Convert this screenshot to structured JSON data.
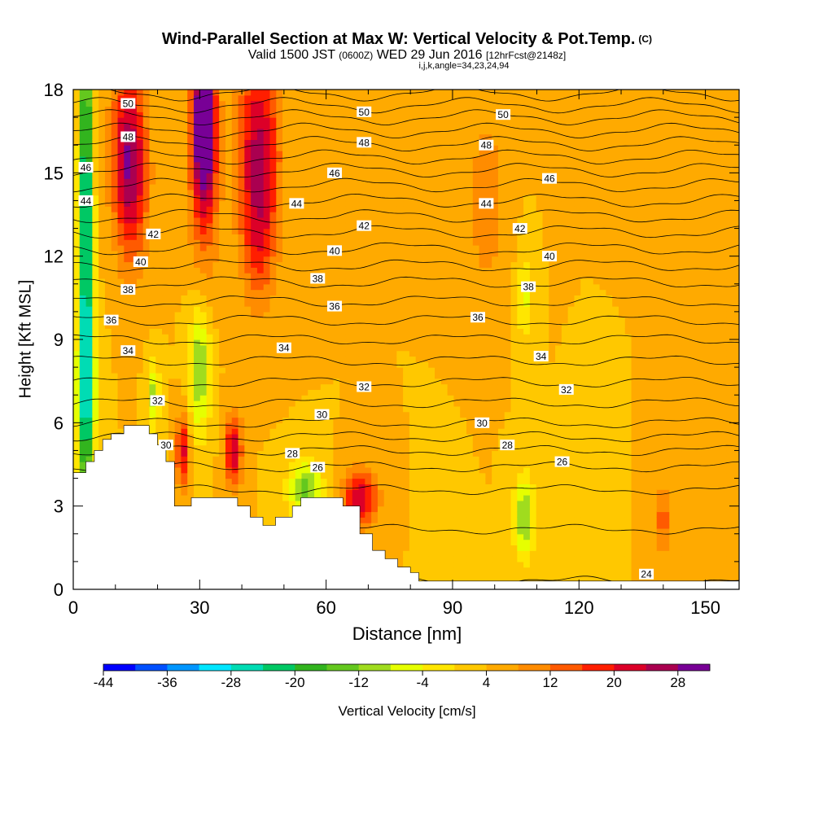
{
  "header": {
    "title": "Wind-Parallel Section at Max W: Vertical Velocity & Pot.Temp.",
    "title_suffix": "(C)",
    "valid_prefix": "Valid 1500 JST",
    "valid_zulu": "(0600Z)",
    "valid_date": "WED 29 Jun 2016",
    "forecast": "[12hrFcst@2148z]",
    "indices": "i,j,k,angle=34,23,24,94"
  },
  "chart_data": {
    "type": "heatmap",
    "xlabel": "Distance [nm]",
    "ylabel": "Height [Kft MSL]",
    "xlim": [
      0,
      158
    ],
    "ylim": [
      0,
      18
    ],
    "x_ticks": [
      0,
      30,
      60,
      90,
      120,
      150
    ],
    "x_tick_labels": [
      "0",
      "30",
      "60",
      "90",
      "120",
      "150"
    ],
    "y_ticks": [
      0,
      3,
      6,
      9,
      12,
      15,
      18
    ],
    "y_tick_labels": [
      "0",
      "3",
      "6",
      "9",
      "12",
      "15",
      "18"
    ],
    "colorbar": {
      "label": "Vertical Velocity [cm/s]",
      "min": -44,
      "max": 32,
      "step": 4,
      "tick_values": [
        -44,
        -36,
        -28,
        -20,
        -12,
        -4,
        4,
        12,
        20,
        28
      ],
      "tick_labels": [
        "-44",
        "-36",
        "-28",
        "-20",
        "-12",
        "-4",
        "4",
        "12",
        "20",
        "28"
      ],
      "colors": [
        "#0000ff",
        "#0050ff",
        "#0096ff",
        "#00e6ff",
        "#00dcb4",
        "#00c864",
        "#32b41e",
        "#64c81e",
        "#a0dc1e",
        "#e6ff00",
        "#ffe600",
        "#ffc800",
        "#ffaa00",
        "#ff8c00",
        "#ff5a00",
        "#ff1e00",
        "#dc0028",
        "#aa0050",
        "#780096"
      ]
    },
    "terrain": [
      [
        0,
        4.2
      ],
      [
        3,
        4.2
      ],
      [
        3,
        4.6
      ],
      [
        5,
        4.6
      ],
      [
        5,
        5.0
      ],
      [
        7,
        5.0
      ],
      [
        7,
        5.4
      ],
      [
        9,
        5.4
      ],
      [
        9,
        5.6
      ],
      [
        12,
        5.6
      ],
      [
        12,
        5.9
      ],
      [
        18,
        5.9
      ],
      [
        18,
        5.6
      ],
      [
        20,
        5.6
      ],
      [
        20,
        5.2
      ],
      [
        22,
        5.2
      ],
      [
        22,
        4.6
      ],
      [
        24,
        4.6
      ],
      [
        24,
        3.0
      ],
      [
        28,
        3.0
      ],
      [
        28,
        3.3
      ],
      [
        39,
        3.3
      ],
      [
        39,
        3.0
      ],
      [
        42,
        3.0
      ],
      [
        42,
        2.6
      ],
      [
        45,
        2.6
      ],
      [
        45,
        2.3
      ],
      [
        48,
        2.3
      ],
      [
        48,
        2.6
      ],
      [
        52,
        2.6
      ],
      [
        52,
        3.0
      ],
      [
        54,
        3.0
      ],
      [
        54,
        3.3
      ],
      [
        64,
        3.3
      ],
      [
        64,
        3.0
      ],
      [
        68,
        3.0
      ],
      [
        68,
        2.0
      ],
      [
        71,
        2.0
      ],
      [
        71,
        1.4
      ],
      [
        74,
        1.4
      ],
      [
        74,
        1.1
      ],
      [
        77,
        1.1
      ],
      [
        77,
        0.8
      ],
      [
        80,
        0.8
      ],
      [
        80,
        0.6
      ],
      [
        82,
        0.6
      ],
      [
        82,
        0.3
      ],
      [
        158,
        0.3
      ]
    ],
    "wv_background": 4,
    "wv_features": [
      {
        "x": 3,
        "z": 12,
        "sx": 1.6,
        "sz": 10,
        "w": -34
      },
      {
        "x": 3,
        "z": 7,
        "sx": 3,
        "sz": 2.5,
        "w": -10
      },
      {
        "x": 13,
        "z": 16,
        "sx": 4,
        "sz": 3,
        "w": 18
      },
      {
        "x": 14,
        "z": 14,
        "sx": 4,
        "sz": 3,
        "w": 10
      },
      {
        "x": 31,
        "z": 17,
        "sx": 2.5,
        "sz": 2.5,
        "w": 30
      },
      {
        "x": 31,
        "z": 15,
        "sx": 3.5,
        "sz": 4,
        "w": 14
      },
      {
        "x": 44,
        "z": 16,
        "sx": 5,
        "sz": 3.5,
        "w": 20
      },
      {
        "x": 44,
        "z": 12.5,
        "sx": 4,
        "sz": 2.5,
        "w": 10
      },
      {
        "x": 30,
        "z": 8,
        "sx": 2.5,
        "sz": 2.5,
        "w": -16
      },
      {
        "x": 19,
        "z": 7,
        "sx": 1.5,
        "sz": 1.2,
        "w": -14
      },
      {
        "x": 26,
        "z": 5,
        "sx": 1.5,
        "sz": 1.3,
        "w": 18
      },
      {
        "x": 38,
        "z": 5,
        "sx": 2,
        "sz": 1.3,
        "w": 20
      },
      {
        "x": 55,
        "z": 3.6,
        "sx": 4,
        "sz": 1,
        "w": -18
      },
      {
        "x": 68,
        "z": 3.3,
        "sx": 4,
        "sz": 1,
        "w": 20
      },
      {
        "x": 107,
        "z": 10.5,
        "sx": 1.5,
        "sz": 1.5,
        "w": -10
      },
      {
        "x": 107,
        "z": 2.6,
        "sx": 2.5,
        "sz": 1.5,
        "w": -16
      },
      {
        "x": 140,
        "z": 2.5,
        "sx": 2,
        "sz": 1.2,
        "w": 10
      },
      {
        "x": 98,
        "z": 14,
        "sx": 4,
        "sz": 3,
        "w": 8
      },
      {
        "x": 88,
        "z": 2.5,
        "sx": 3,
        "sz": 1.5,
        "w": -4
      },
      {
        "x": 120,
        "z": 2.5,
        "sx": 3,
        "sz": 1.5,
        "w": -4
      }
    ],
    "theta_levels": [
      24,
      25,
      26,
      27,
      28,
      29,
      30,
      31,
      32,
      33,
      34,
      35,
      36,
      37,
      38,
      39,
      40,
      41,
      42,
      43,
      44,
      45,
      46,
      47,
      48,
      49,
      50
    ],
    "theta_profile": {
      "z": [
        0.3,
        1.0,
        2.5,
        4.0,
        5.0,
        6.0,
        7.0,
        9.0,
        11.0,
        13.0,
        15.0,
        17.0,
        18.0
      ],
      "theta": [
        24.0,
        24.3,
        25.2,
        26.3,
        28.0,
        30.0,
        31.4,
        34.0,
        36.9,
        40.2,
        43.8,
        48.0,
        50.3
      ]
    },
    "theta_labels": [
      {
        "text": "50",
        "x": 13,
        "z": 17.5
      },
      {
        "text": "48",
        "x": 13,
        "z": 16.3
      },
      {
        "text": "46",
        "x": 3,
        "z": 15.2
      },
      {
        "text": "44",
        "x": 3,
        "z": 14.0
      },
      {
        "text": "42",
        "x": 19,
        "z": 12.8
      },
      {
        "text": "40",
        "x": 16,
        "z": 11.8
      },
      {
        "text": "38",
        "x": 13,
        "z": 10.8
      },
      {
        "text": "36",
        "x": 9,
        "z": 9.7
      },
      {
        "text": "34",
        "x": 13,
        "z": 8.6
      },
      {
        "text": "32",
        "x": 20,
        "z": 6.8
      },
      {
        "text": "30",
        "x": 22,
        "z": 5.2
      },
      {
        "text": "50",
        "x": 69,
        "z": 17.2
      },
      {
        "text": "48",
        "x": 69,
        "z": 16.1
      },
      {
        "text": "46",
        "x": 62,
        "z": 15.0
      },
      {
        "text": "44",
        "x": 53,
        "z": 13.9
      },
      {
        "text": "42",
        "x": 69,
        "z": 13.1
      },
      {
        "text": "40",
        "x": 62,
        "z": 12.2
      },
      {
        "text": "38",
        "x": 58,
        "z": 11.2
      },
      {
        "text": "36",
        "x": 62,
        "z": 10.2
      },
      {
        "text": "34",
        "x": 50,
        "z": 8.7
      },
      {
        "text": "32",
        "x": 69,
        "z": 7.3
      },
      {
        "text": "30",
        "x": 59,
        "z": 6.3
      },
      {
        "text": "28",
        "x": 52,
        "z": 4.9
      },
      {
        "text": "26",
        "x": 58,
        "z": 4.4
      },
      {
        "text": "50",
        "x": 102,
        "z": 17.1
      },
      {
        "text": "48",
        "x": 98,
        "z": 16.0
      },
      {
        "text": "46",
        "x": 113,
        "z": 14.8
      },
      {
        "text": "44",
        "x": 98,
        "z": 13.9
      },
      {
        "text": "42",
        "x": 106,
        "z": 13.0
      },
      {
        "text": "40",
        "x": 113,
        "z": 12.0
      },
      {
        "text": "38",
        "x": 108,
        "z": 10.9
      },
      {
        "text": "36",
        "x": 96,
        "z": 9.8
      },
      {
        "text": "34",
        "x": 111,
        "z": 8.4
      },
      {
        "text": "32",
        "x": 117,
        "z": 7.2
      },
      {
        "text": "30",
        "x": 97,
        "z": 6.0
      },
      {
        "text": "28",
        "x": 103,
        "z": 5.2
      },
      {
        "text": "26",
        "x": 116,
        "z": 4.6
      },
      {
        "text": "24",
        "x": 136,
        "z": 0.55
      }
    ]
  }
}
